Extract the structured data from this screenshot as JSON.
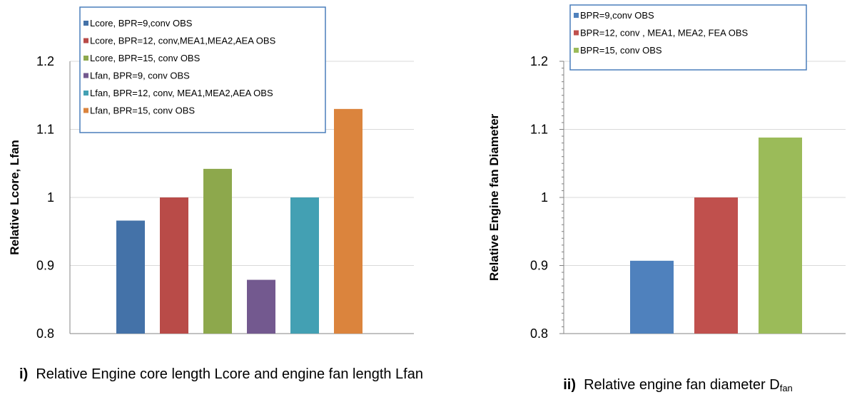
{
  "chart_data": [
    {
      "type": "bar",
      "ylabel": "Relative Lcore, Lfan",
      "ylim": [
        0.8,
        1.2
      ],
      "yticks": [
        "0.8",
        "0.9",
        "1",
        "1.1",
        "1.2"
      ],
      "grid": true,
      "legend_position": "top-left",
      "series": [
        {
          "name": "Lcore, BPR=9,conv OBS",
          "values": [
            0.966
          ],
          "color": "#4472a8"
        },
        {
          "name": "Lcore, BPR=12, conv,MEA1,MEA2,AEA OBS",
          "values": [
            1.0
          ],
          "color": "#b94b48"
        },
        {
          "name": "Lcore, BPR=15, conv OBS",
          "values": [
            1.042
          ],
          "color": "#8da84c"
        },
        {
          "name": "Lfan, BPR=9, conv OBS",
          "values": [
            0.879
          ],
          "color": "#73598f"
        },
        {
          "name": "Lfan, BPR=12, conv, MEA1,MEA2,AEA OBS",
          "values": [
            1.0
          ],
          "color": "#43a0b3"
        },
        {
          "name": "Lfan, BPR=15, conv OBS",
          "values": [
            1.13
          ],
          "color": "#db843d"
        }
      ]
    },
    {
      "type": "bar",
      "ylabel": "Relative Engine fan Diameter",
      "ylim": [
        0.8,
        1.2
      ],
      "yticks": [
        "0.8",
        "0.9",
        "1",
        "1.1",
        "1.2"
      ],
      "grid": true,
      "legend_position": "top-left",
      "series": [
        {
          "name": "BPR=9,conv OBS",
          "values": [
            0.907
          ],
          "color": "#4f81bd"
        },
        {
          "name": "BPR=12, conv , MEA1, MEA2, FEA OBS",
          "values": [
            1.0
          ],
          "color": "#c0504d"
        },
        {
          "name": "BPR=15, conv OBS",
          "values": [
            1.088
          ],
          "color": "#9bbb59"
        }
      ]
    }
  ],
  "captions": {
    "left_marker": "i)",
    "left_text": "Relative Engine core length Lcore and engine fan length Lfan",
    "right_marker": "ii)",
    "right_text": "Relative engine fan diameter D",
    "right_sub": "fan"
  }
}
